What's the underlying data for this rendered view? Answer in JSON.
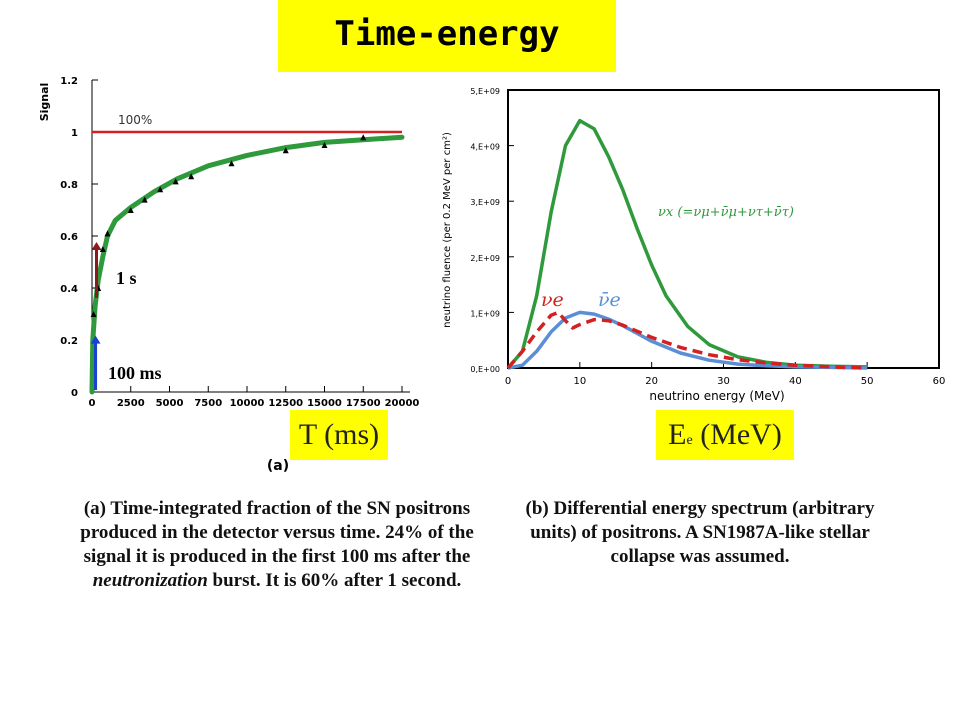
{
  "slide": {
    "title": "Time-energy",
    "badge_left": "T (ms)",
    "badge_right_main": "E",
    "badge_right_sub": "e",
    "badge_right_unit": " (MeV)",
    "caption_left": {
      "p1": "(a) Time-integrated fraction of the SN positrons produced in the detector versus time. 24% of the signal it is produced in the first 100 ms after the ",
      "italic": "neutronization",
      "p2": " burst. It is 60% after 1 second."
    },
    "caption_right": "(b) Differential energy spectrum (arbitrary units) of positrons. A SN1987A-like stellar collapse was assumed."
  },
  "colors": {
    "green": "#2e9a3c",
    "red": "#d42020",
    "blue": "#5a8fd6",
    "darkred": "#8b1a1a",
    "arrow_blue": "#1a3fd6"
  },
  "chart_data": [
    {
      "type": "line",
      "ylabel": "Signal",
      "xlabel": "T (ms)",
      "panel_label": "(a)",
      "xlim": [
        0,
        20000
      ],
      "ylim": [
        0,
        1.2
      ],
      "x_ticks": [
        "0",
        "2500",
        "5000",
        "7500",
        "10000",
        "12500",
        "15000",
        "17500",
        "20000"
      ],
      "y_ticks": [
        "0",
        "0.2",
        "0.4",
        "0.6",
        "0.8",
        "1",
        "1.2"
      ],
      "reference_line": {
        "y": 1.0,
        "label": "100%"
      },
      "annotations": [
        {
          "text": "100 ms",
          "x": 100,
          "y": 0.24
        },
        {
          "text": "1 s",
          "x": 1000,
          "y": 0.6
        }
      ],
      "series": [
        {
          "x": [
            0,
            50,
            100,
            200,
            400,
            700,
            1000,
            1500,
            2500,
            4000,
            5500,
            7500,
            10000,
            12500,
            15000,
            17500,
            20000
          ],
          "values": [
            0.0,
            0.2,
            0.24,
            0.33,
            0.43,
            0.52,
            0.6,
            0.66,
            0.71,
            0.77,
            0.82,
            0.87,
            0.91,
            0.94,
            0.96,
            0.97,
            0.98
          ]
        }
      ],
      "markers": {
        "x": [
          100,
          400,
          700,
          1000,
          2500,
          3400,
          4400,
          5400,
          6400,
          9000,
          12500,
          15000,
          17500
        ],
        "values": [
          0.3,
          0.4,
          0.55,
          0.61,
          0.7,
          0.74,
          0.78,
          0.81,
          0.83,
          0.88,
          0.93,
          0.95,
          0.98
        ]
      }
    },
    {
      "type": "line",
      "xlabel": "neutrino energy (MeV)",
      "ylabel": "neutrino fluence (per 0.2 MeV per cm²)",
      "xlim": [
        0,
        60
      ],
      "ylim": [
        0,
        5000000000.0
      ],
      "x_ticks": [
        "0",
        "10",
        "20",
        "30",
        "40",
        "50",
        "60"
      ],
      "y_ticks": [
        "0,E+00",
        "1,E+09",
        "2,E+09",
        "3,E+09",
        "4,E+09",
        "5,E+09"
      ],
      "series": [
        {
          "name": "νx (=νμ+ν̄μ+ντ+ν̄τ)",
          "color": "#2e9a3c",
          "x": [
            0,
            2,
            4,
            6,
            8,
            10,
            12,
            14,
            16,
            18,
            20,
            22,
            25,
            28,
            32,
            36,
            40,
            45,
            50
          ],
          "values": [
            0.0,
            300000000.0,
            1300000000.0,
            2800000000.0,
            4000000000.0,
            4450000000.0,
            4300000000.0,
            3800000000.0,
            3200000000.0,
            2500000000.0,
            1850000000.0,
            1300000000.0,
            750000000.0,
            420000000.0,
            200000000.0,
            100000000.0,
            50000000.0,
            30000000.0,
            20000000.0
          ]
        },
        {
          "name": "ν̄e",
          "color": "#5a8fd6",
          "x": [
            0,
            2,
            4,
            6,
            8,
            10,
            12,
            14,
            16,
            18,
            20,
            24,
            28,
            32,
            36,
            40,
            45,
            50
          ],
          "values": [
            0.0,
            50000000.0,
            300000000.0,
            650000000.0,
            900000000.0,
            1000000000.0,
            970000000.0,
            880000000.0,
            760000000.0,
            620000000.0,
            480000000.0,
            270000000.0,
            140000000.0,
            70000000.0,
            40000000.0,
            20000000.0,
            10000000.0,
            0.0
          ]
        },
        {
          "name": "νe",
          "color": "#d42020",
          "dashed": true,
          "x": [
            0,
            2,
            4,
            6,
            7,
            8,
            9,
            10,
            12,
            14,
            16,
            18,
            20,
            24,
            28,
            32,
            36,
            40,
            45,
            50
          ],
          "values": [
            0.0,
            300000000.0,
            650000000.0,
            950000000.0,
            1000000000.0,
            850000000.0,
            720000000.0,
            780000000.0,
            870000000.0,
            850000000.0,
            770000000.0,
            660000000.0,
            550000000.0,
            370000000.0,
            240000000.0,
            150000000.0,
            90000000.0,
            50000000.0,
            20000000.0,
            0.0
          ]
        }
      ]
    }
  ]
}
